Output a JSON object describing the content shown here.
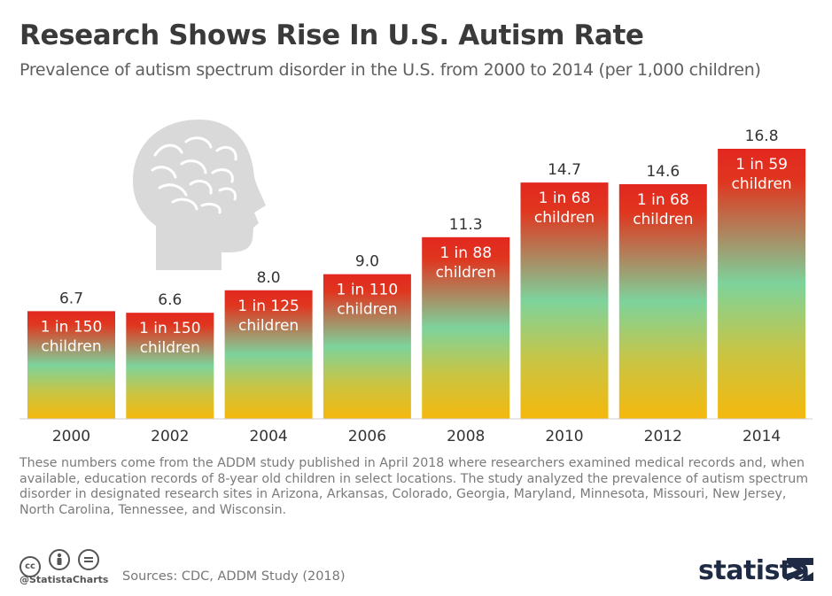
{
  "header": {
    "title": "Research Shows Rise In U.S. Autism Rate",
    "subtitle": "Prevalence of autism spectrum disorder in the U.S. from 2000 to 2014 (per 1,000 children)"
  },
  "chart_data": {
    "type": "bar",
    "title": "Research Shows Rise In U.S. Autism Rate",
    "ylabel": "per 1,000 children",
    "xlabel": "",
    "ylim": [
      0,
      16.8
    ],
    "grid": false,
    "categories": [
      "2000",
      "2002",
      "2004",
      "2006",
      "2008",
      "2010",
      "2012",
      "2014"
    ],
    "values": [
      6.7,
      6.6,
      8.0,
      9.0,
      11.3,
      14.7,
      14.6,
      16.8
    ],
    "value_labels": [
      "6.7",
      "6.6",
      "8.0",
      "9.0",
      "11.3",
      "14.7",
      "14.6",
      "16.8"
    ],
    "ratio_line1": [
      "1 in 150",
      "1 in 150",
      "1 in 125",
      "1 in 110",
      "1 in 88",
      "1 in 68",
      "1 in 68",
      "1 in 59"
    ],
    "ratio_line2": [
      "children",
      "children",
      "children",
      "children",
      "children",
      "children",
      "children",
      "children"
    ]
  },
  "colors": {
    "bar_top": "#e2271f",
    "bar_mid": "#6ecf9a",
    "bar_bottom": "#f5b80c",
    "brain_head": "#d9d9d9"
  },
  "icons": [
    "head-brain-icon",
    "cc-icon",
    "attribution-icon",
    "no-derivatives-icon",
    "statista-logo-icon"
  ],
  "footer": {
    "note": "These numbers come from the ADDM study published in April 2018 where researchers examined medical records and, when available, education records of 8-year old children in select locations. The study analyzed the prevalence of autism spectrum disorder in designated research sites in Arizona, Arkansas, Colorado, Georgia, Maryland, Minnesota, Missouri, New Jersey, North Carolina, Tennessee, and Wisconsin.",
    "handle": "@StatistaCharts",
    "sources": "Sources: CDC, ADDM Study (2018)",
    "cc_label": "cc",
    "logo": "statista"
  }
}
